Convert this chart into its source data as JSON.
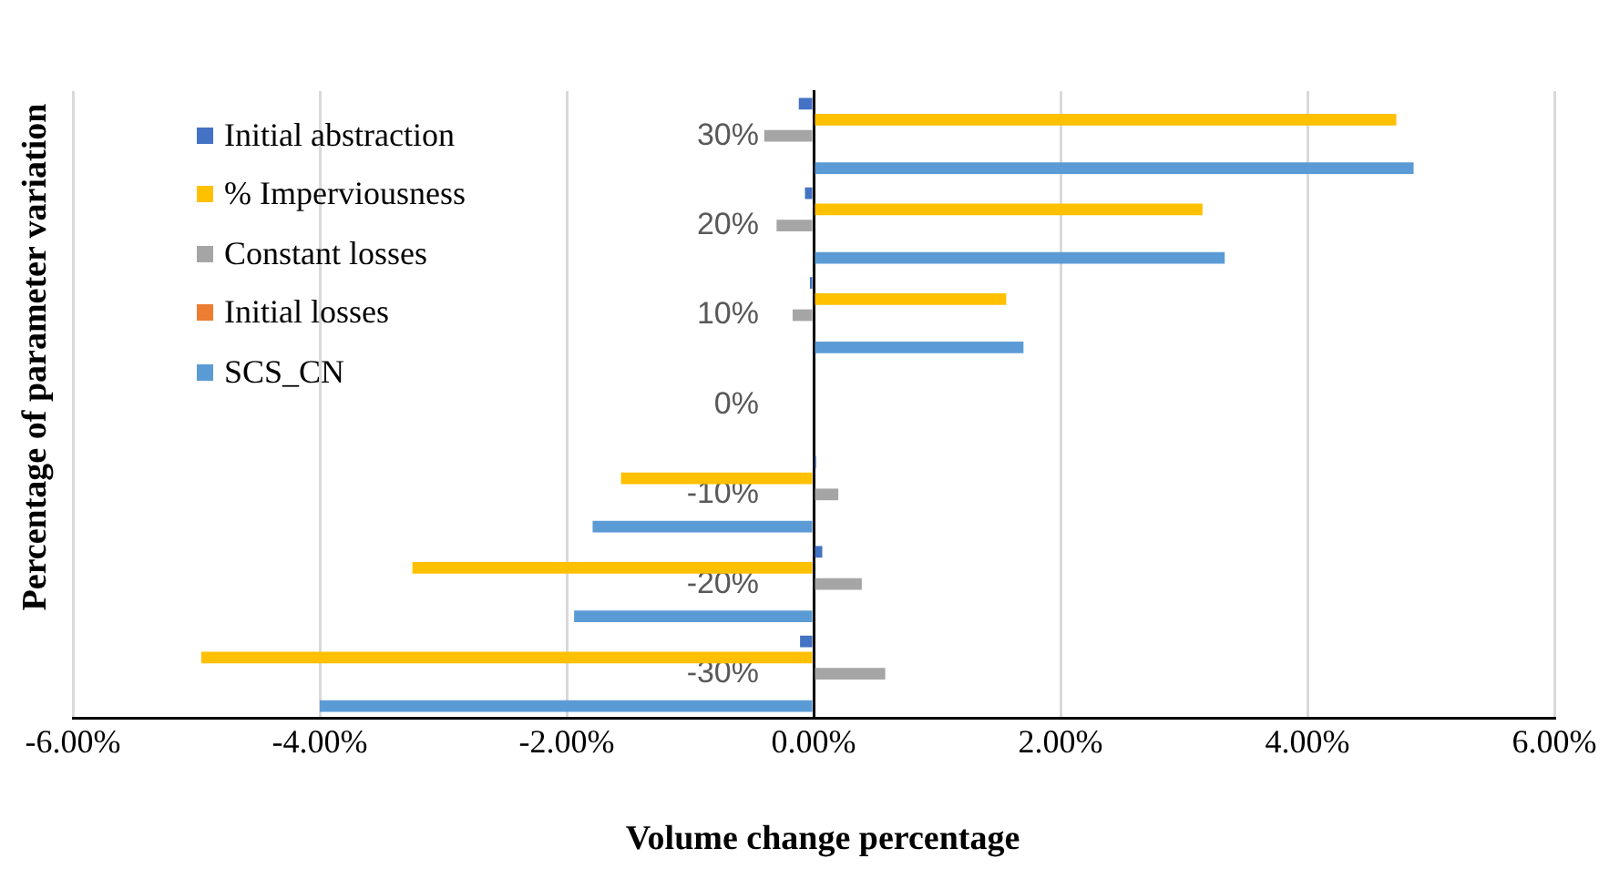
{
  "chart_data": {
    "type": "bar",
    "orientation": "horizontal",
    "xlabel": "Volume change percentage",
    "ylabel": "Percentage of parameter variation",
    "categories": [
      "30%",
      "20%",
      "10%",
      "0%",
      "-10%",
      "-20%",
      "-30%"
    ],
    "series": [
      {
        "name": "Initial abstraction",
        "color": "#4472c4",
        "values": [
          -0.12,
          -0.07,
          -0.03,
          0,
          0.02,
          0.07,
          -0.11
        ]
      },
      {
        "name": "% Imperviousness",
        "color": "#ffc000",
        "values": [
          4.72,
          3.15,
          1.56,
          0,
          -1.56,
          -3.25,
          -4.96
        ]
      },
      {
        "name": "Constant losses",
        "color": "#a5a5a5",
        "values": [
          -0.4,
          -0.3,
          -0.17,
          0,
          0.2,
          0.39,
          0.58
        ]
      },
      {
        "name": "Initial losses",
        "color": "#ed7d31",
        "values": [
          0,
          0,
          0,
          0,
          0,
          0,
          0
        ]
      },
      {
        "name": "SCS_CN",
        "color": "#5b9bd5",
        "values": [
          4.86,
          3.33,
          1.7,
          0,
          -1.79,
          -1.94,
          -4.0
        ]
      }
    ],
    "xlim": [
      -6,
      6
    ],
    "xticks": [
      {
        "value": -6,
        "label": "-6.00%"
      },
      {
        "value": -4,
        "label": "-4.00%"
      },
      {
        "value": -2,
        "label": "-2.00%"
      },
      {
        "value": 0,
        "label": "0.00%"
      },
      {
        "value": 2,
        "label": "2.00%"
      },
      {
        "value": 4,
        "label": "4.00%"
      },
      {
        "value": 6,
        "label": "6.00%"
      }
    ],
    "grid": "x",
    "legend": "top left"
  }
}
